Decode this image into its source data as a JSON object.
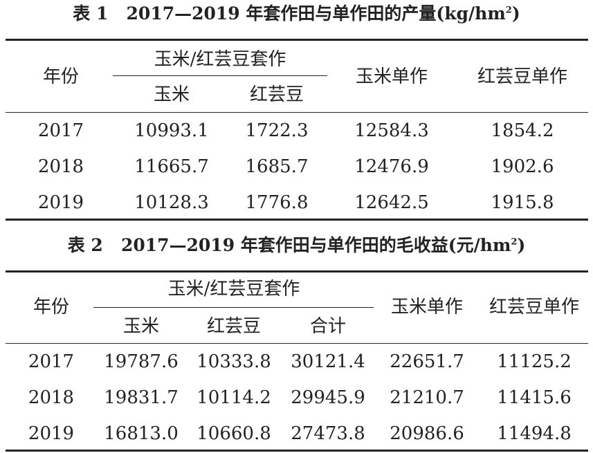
{
  "table1": {
    "label": "表 1",
    "title_text": "2017—2019 年套作田与单作田的产量(kg/hm",
    "title_sup": "2",
    "title_end": ")",
    "header": {
      "year": "年份",
      "intercrop_group": "玉米/红芸豆套作",
      "sub": [
        "玉米",
        "红芸豆"
      ],
      "mono_corn": "玉米单作",
      "mono_bean": "红芸豆单作"
    },
    "rows": [
      [
        "2017",
        "10993.1",
        "1722.3",
        "12584.3",
        "1854.2"
      ],
      [
        "2018",
        "11665.7",
        "1685.7",
        "12476.9",
        "1902.6"
      ],
      [
        "2019",
        "10128.3",
        "1776.8",
        "12642.5",
        "1915.8"
      ]
    ]
  },
  "table2": {
    "label": "表 2",
    "title_text": "2017—2019 年套作田与单作田的毛收益(元/hm",
    "title_sup": "2",
    "title_end": ")",
    "header": {
      "year": "年份",
      "intercrop_group": "玉米/红芸豆套作",
      "sub": [
        "玉米",
        "红芸豆",
        "合计"
      ],
      "mono_corn": "玉米单作",
      "mono_bean": "红芸豆单作"
    },
    "rows": [
      [
        "2017",
        "19787.6",
        "10333.8",
        "30121.4",
        "22651.7",
        "11125.2"
      ],
      [
        "2018",
        "19831.7",
        "10114.2",
        "29945.9",
        "21210.7",
        "11415.6"
      ],
      [
        "2019",
        "16813.0",
        "10660.8",
        "27473.8",
        "20986.6",
        "11494.8"
      ]
    ]
  }
}
